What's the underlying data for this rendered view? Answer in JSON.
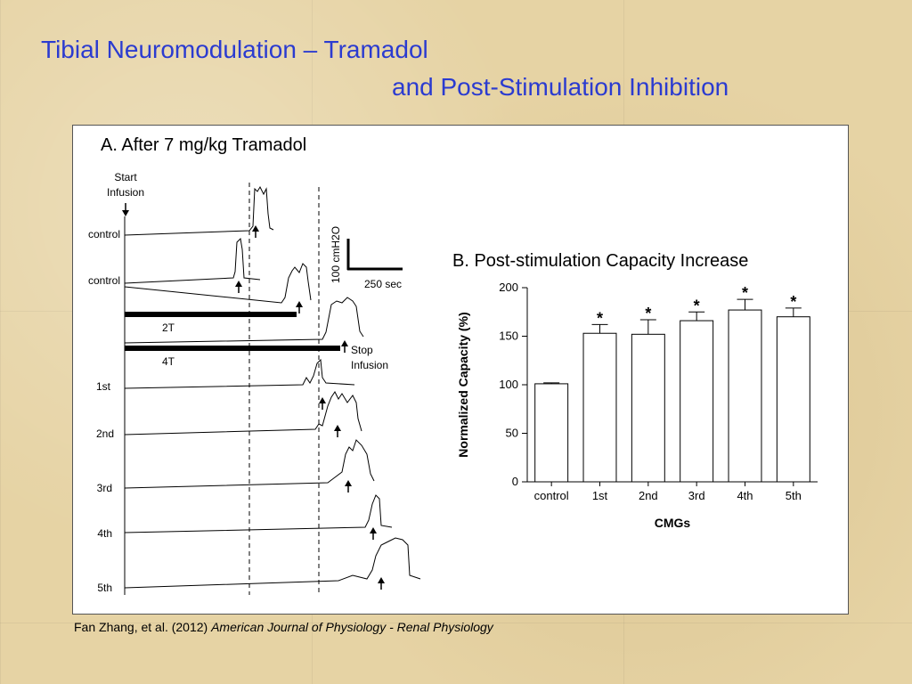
{
  "slide": {
    "title_line1": "Tibial Neuromodulation – Tramadol",
    "title_line2": "and Post-Stimulation Inhibition",
    "citation_authors": "Fan Zhang, et al. (2012)",
    "citation_journal": "American Journal of  Physiology - Renal  Physiology"
  },
  "panel_a": {
    "title": "A. After 7 mg/kg Tramadol",
    "start_label_1": "Start",
    "start_label_2": "Infusion",
    "stop_label_1": "Stop",
    "stop_label_2": "Infusion",
    "scale_pressure": "100 cmH2O",
    "scale_time": "250 sec",
    "trace_labels": [
      "control",
      "control",
      "1st",
      "2nd",
      "3rd",
      "4th",
      "5th"
    ],
    "stim_labels": [
      "2T",
      "4T"
    ]
  },
  "chart_data": {
    "type": "bar",
    "title": "B. Post-stimulation Capacity Increase",
    "categories": [
      "control",
      "1st",
      "2nd",
      "3rd",
      "4th",
      "5th"
    ],
    "values": [
      101,
      153,
      152,
      166,
      177,
      170
    ],
    "errors": [
      1,
      9,
      15,
      9,
      11,
      9
    ],
    "significant": [
      false,
      true,
      true,
      true,
      true,
      true
    ],
    "significance_marker": "*",
    "xlabel": "CMGs",
    "ylabel": "Normalized Capacity (%)",
    "ylim": [
      0,
      200
    ],
    "yticks": [
      0,
      50,
      100,
      150,
      200
    ],
    "bar_color": "#ffffff"
  }
}
